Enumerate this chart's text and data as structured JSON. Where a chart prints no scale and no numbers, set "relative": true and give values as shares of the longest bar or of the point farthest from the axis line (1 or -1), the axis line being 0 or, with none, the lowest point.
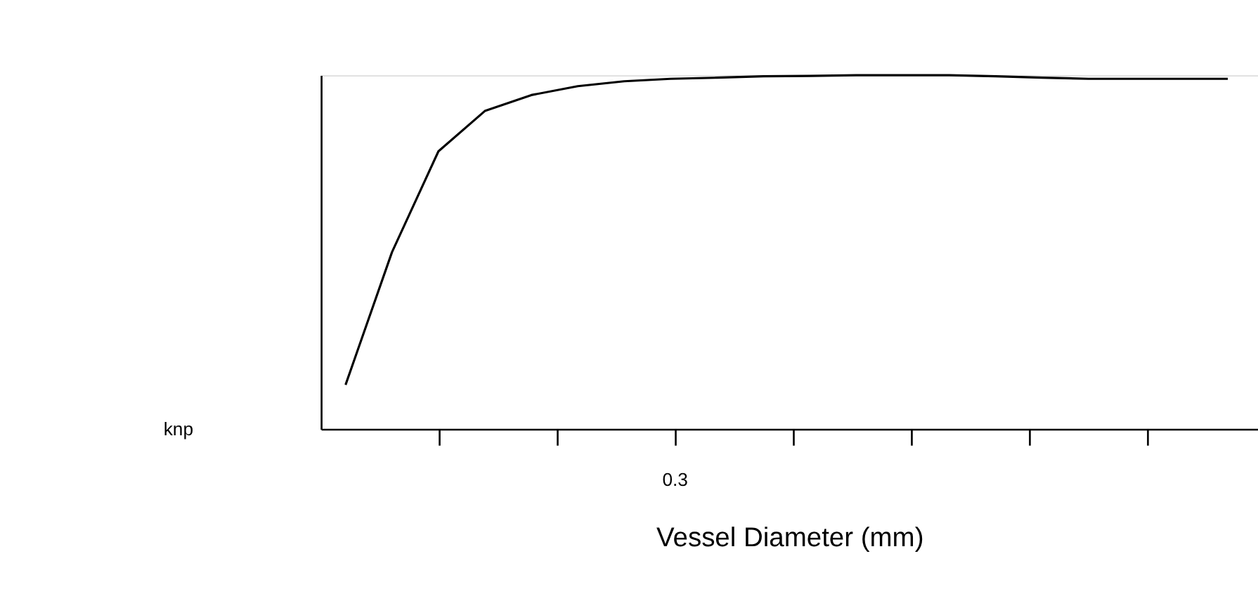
{
  "chart_data": {
    "type": "line",
    "relative": true,
    "xlabel": "Vessel Diameter (mm)",
    "color": "#000000",
    "categories": [
      null,
      null,
      null,
      null,
      null,
      null,
      null,
      null,
      null,
      null,
      null,
      null,
      null,
      null,
      null,
      null,
      null,
      null,
      null,
      null
    ],
    "values": [
      0.125,
      0.5,
      0.785,
      0.899,
      0.944,
      0.969,
      0.983,
      0.99,
      0.993,
      0.997,
      0.998,
      1,
      1,
      1,
      0.997,
      0.993,
      0.99,
      0.99,
      0.99,
      0.99
    ],
    "annotations": [
      "knp",
      "0.3"
    ],
    "grid": false,
    "marker": "none",
    "line_style": "solid"
  }
}
